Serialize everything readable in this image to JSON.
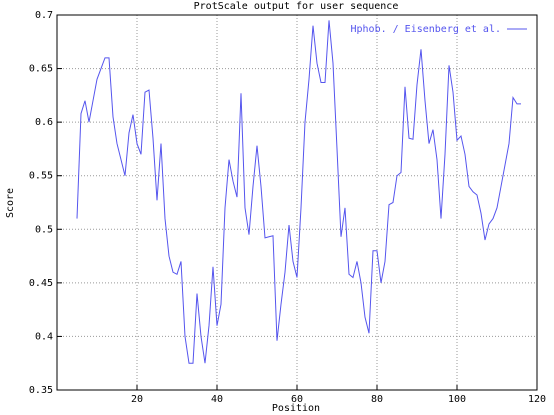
{
  "chart_data": {
    "type": "line",
    "title": "ProtScale output for user sequence",
    "x_label": "Position",
    "y_label": "Score",
    "x": [
      5,
      6,
      7,
      8,
      9,
      10,
      11,
      12,
      13,
      14,
      15,
      16,
      17,
      18,
      19,
      20,
      21,
      22,
      23,
      24,
      25,
      26,
      27,
      28,
      29,
      30,
      31,
      32,
      33,
      34,
      35,
      36,
      37,
      38,
      39,
      40,
      41,
      42,
      43,
      44,
      45,
      46,
      47,
      48,
      49,
      50,
      51,
      52,
      53,
      54,
      55,
      56,
      57,
      58,
      59,
      60,
      61,
      62,
      63,
      64,
      65,
      66,
      67,
      68,
      69,
      70,
      71,
      72,
      73,
      74,
      75,
      76,
      77,
      78,
      79,
      80,
      81,
      82,
      83,
      84,
      85,
      86,
      87,
      88,
      89,
      90,
      91,
      92,
      93,
      94,
      95,
      96,
      97,
      98,
      99,
      100,
      101,
      102,
      103,
      104,
      105,
      106,
      107,
      108,
      109,
      110,
      111,
      112,
      113,
      114,
      115,
      116
    ],
    "series": [
      {
        "name": "Hphob. / Eisenberg et al.",
        "color": "#5555ee",
        "values": [
          0.51,
          0.608,
          0.62,
          0.6,
          0.62,
          0.64,
          0.65,
          0.66,
          0.66,
          0.605,
          0.58,
          0.565,
          0.55,
          0.59,
          0.607,
          0.58,
          0.57,
          0.628,
          0.63,
          0.585,
          0.527,
          0.58,
          0.51,
          0.475,
          0.46,
          0.458,
          0.47,
          0.4,
          0.375,
          0.375,
          0.44,
          0.4,
          0.375,
          0.41,
          0.465,
          0.41,
          0.43,
          0.52,
          0.565,
          0.545,
          0.53,
          0.627,
          0.52,
          0.495,
          0.54,
          0.578,
          0.54,
          0.492,
          0.493,
          0.494,
          0.396,
          0.43,
          0.46,
          0.504,
          0.47,
          0.455,
          0.52,
          0.6,
          0.64,
          0.69,
          0.655,
          0.637,
          0.637,
          0.695,
          0.655,
          0.575,
          0.493,
          0.52,
          0.458,
          0.455,
          0.47,
          0.45,
          0.418,
          0.403,
          0.48,
          0.48,
          0.45,
          0.47,
          0.523,
          0.525,
          0.55,
          0.553,
          0.633,
          0.585,
          0.584,
          0.635,
          0.668,
          0.62,
          0.58,
          0.593,
          0.565,
          0.51,
          0.57,
          0.653,
          0.628,
          0.583,
          0.587,
          0.57,
          0.54,
          0.535,
          0.532,
          0.515,
          0.49,
          0.505,
          0.51,
          0.52,
          0.54,
          0.56,
          0.58,
          0.623,
          0.617,
          0.617
        ]
      }
    ],
    "xlim": [
      0,
      120
    ],
    "xticks": [
      20,
      40,
      60,
      80,
      100,
      120
    ],
    "ylim": [
      0.35,
      0.7
    ],
    "yticks": [
      0.35,
      0.4,
      0.45,
      0.5,
      0.55,
      0.6,
      0.65,
      0.7
    ],
    "grid": true,
    "legend": "top-right"
  }
}
